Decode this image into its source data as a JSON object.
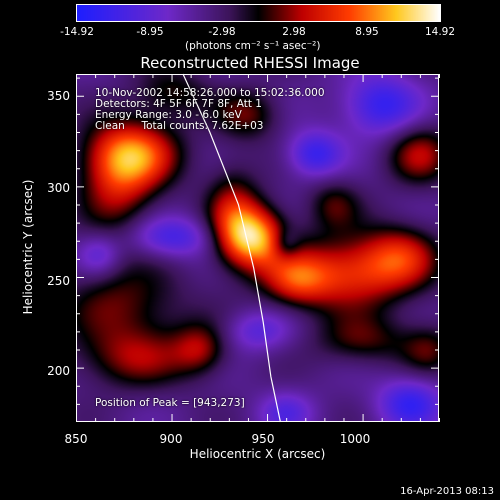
{
  "chart_data": {
    "type": "heatmap",
    "title": "Reconstructed RHESSI Image",
    "xlabel": "Heliocentric X (arcsec)",
    "ylabel": "Heliocentric Y (arcsec)",
    "xlim": [
      850,
      1040
    ],
    "ylim": [
      170,
      362
    ],
    "x_ticks": [
      "850",
      "900",
      "950",
      "1000"
    ],
    "y_ticks": [
      "200",
      "250",
      "300",
      "350"
    ],
    "colorbar": {
      "ticks": [
        "-14.92",
        "-8.95",
        "-2.98",
        "2.98",
        "8.95",
        "14.92"
      ],
      "unit_label": "(photons cm⁻² s⁻¹ asec⁻²)",
      "range": [
        -14.92,
        14.92
      ]
    },
    "annotations": [
      "10-Nov-2002 14:58:26.000 to 15:02:36.000",
      "Detectors: 4F 5F 6F 7F 8F, Att 1",
      "Energy Range: 3.0 - 6.0 keV",
      "Clean     Total counts: 7.62E+03"
    ],
    "peak_label": "Position of Peak = [943,273]",
    "peak": {
      "x": 943,
      "y": 273,
      "value": 14.92
    },
    "blobs": [
      {
        "x": 943,
        "y": 272,
        "sx": 12,
        "sy": 12,
        "a": 14.9
      },
      {
        "x": 932,
        "y": 286,
        "sx": 10,
        "sy": 18,
        "a": 7.0
      },
      {
        "x": 880,
        "y": 318,
        "sx": 17,
        "sy": 13,
        "a": 11.5
      },
      {
        "x": 872,
        "y": 300,
        "sx": 14,
        "sy": 20,
        "a": 7.5
      },
      {
        "x": 992,
        "y": 252,
        "sx": 24,
        "sy": 14,
        "a": 10.5
      },
      {
        "x": 1020,
        "y": 262,
        "sx": 14,
        "sy": 12,
        "a": 7.5
      },
      {
        "x": 965,
        "y": 248,
        "sx": 12,
        "sy": 10,
        "a": 7.0
      },
      {
        "x": 1030,
        "y": 318,
        "sx": 12,
        "sy": 12,
        "a": 7.5
      },
      {
        "x": 940,
        "y": 340,
        "sx": 12,
        "sy": 10,
        "a": 6.0
      },
      {
        "x": 875,
        "y": 235,
        "sx": 22,
        "sy": 16,
        "a": 6.0
      },
      {
        "x": 880,
        "y": 205,
        "sx": 22,
        "sy": 12,
        "a": 6.5
      },
      {
        "x": 915,
        "y": 210,
        "sx": 10,
        "sy": 10,
        "a": 6.5
      },
      {
        "x": 1000,
        "y": 215,
        "sx": 18,
        "sy": 10,
        "a": 5.5
      },
      {
        "x": 1035,
        "y": 210,
        "sx": 10,
        "sy": 10,
        "a": 5.0
      },
      {
        "x": 985,
        "y": 290,
        "sx": 10,
        "sy": 10,
        "a": 5.0
      },
      {
        "x": 900,
        "y": 352,
        "sx": 14,
        "sy": 10,
        "a": 5.0
      },
      {
        "x": 975,
        "y": 318,
        "sx": 10,
        "sy": 9,
        "a": -8.0
      },
      {
        "x": 1010,
        "y": 345,
        "sx": 14,
        "sy": 12,
        "a": -8.5
      },
      {
        "x": 900,
        "y": 272,
        "sx": 16,
        "sy": 8,
        "a": -7.0
      },
      {
        "x": 1025,
        "y": 180,
        "sx": 12,
        "sy": 10,
        "a": -8.0
      },
      {
        "x": 960,
        "y": 175,
        "sx": 10,
        "sy": 8,
        "a": -5.0
      },
      {
        "x": 945,
        "y": 220,
        "sx": 12,
        "sy": 8,
        "a": -5.0
      },
      {
        "x": 862,
        "y": 262,
        "sx": 8,
        "sy": 8,
        "a": -5.0
      },
      {
        "x": 960,
        "y": 268,
        "sx": 5,
        "sy": 6,
        "a": -4.5
      }
    ],
    "limb_curve": [
      [
        906,
        362
      ],
      [
        920,
        330
      ],
      [
        935,
        290
      ],
      [
        943,
        255
      ],
      [
        948,
        225
      ],
      [
        952,
        195
      ],
      [
        957,
        170
      ]
    ]
  },
  "footer": {
    "date": "16-Apr-2013 08:13"
  }
}
